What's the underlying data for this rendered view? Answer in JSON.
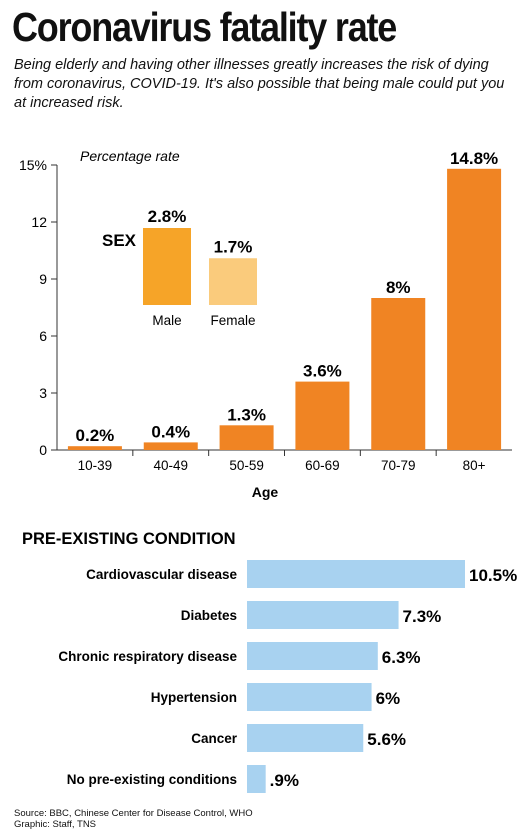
{
  "header": {
    "title": "Coronavirus fatality rate",
    "subtitle": "Being elderly and having other illnesses greatly increases the risk of dying from coronavirus, COVID-19. It's also possible that being male could put you at increased risk."
  },
  "colors": {
    "age_bar": "#F08423",
    "male_bar": "#F6A428",
    "female_bar": "#FACB7C",
    "condition_bar": "#A8D2F0",
    "text": "#111111"
  },
  "chart_data": [
    {
      "type": "bar",
      "ylabel": "Percentage rate",
      "xlabel": "Age",
      "ylim": [
        0,
        15
      ],
      "yticks": [
        "0",
        "3",
        "6",
        "9",
        "12",
        "15%"
      ],
      "categories": [
        "10-39",
        "40-49",
        "50-59",
        "60-69",
        "70-79",
        "80+"
      ],
      "values": [
        0.2,
        0.4,
        1.3,
        3.6,
        8,
        14.8
      ],
      "value_labels": [
        "0.2%",
        "0.4%",
        "1.3%",
        "3.6%",
        "8%",
        "14.8%"
      ],
      "grid": false
    },
    {
      "type": "bar",
      "title": "SEX",
      "categories": [
        "Male",
        "Female"
      ],
      "values": [
        2.8,
        1.7
      ],
      "value_labels": [
        "2.8%",
        "1.7%"
      ]
    },
    {
      "type": "bar",
      "orientation": "horizontal",
      "title": "PRE-EXISTING CONDITION",
      "categories": [
        "Cardiovascular disease",
        "Diabetes",
        "Chronic respiratory disease",
        "Hypertension",
        "Cancer",
        "No pre-existing conditions"
      ],
      "values": [
        10.5,
        7.3,
        6.3,
        6,
        5.6,
        0.9
      ],
      "value_labels": [
        "10.5%",
        "7.3%",
        "6.3%",
        "6%",
        "5.6%",
        ".9%"
      ]
    }
  ],
  "source": {
    "line1": "Source: BBC, Chinese Center for Disease Control, WHO",
    "line2": "Graphic: Staff, TNS"
  }
}
